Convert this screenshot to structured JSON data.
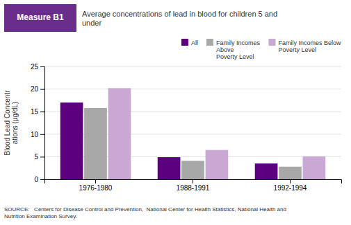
{
  "chart_data": {
    "type": "bar",
    "title": "Average concentrations of lead in blood for children 5 and\nunder",
    "annotations": [
      "Measure B1",
      "SOURCE:   Centers for Disease Control and Prevention,  National Center for Health Statistics, National Health and\nNutrition Examination Survey."
    ],
    "y_label": "Blood Lead Concentr\nations (µg/dL)",
    "categories": [
      "1976-1980",
      "1988-1991",
      "1992-1994"
    ],
    "series": [
      {
        "name": "All",
        "color": "#5c0080",
        "values": [
          17.0,
          4.9,
          3.5
        ]
      },
      {
        "name": "Family Incomes\nAbove\nPoverty Level",
        "color": "#a8a8a8",
        "values": [
          15.8,
          4.1,
          2.8
        ]
      },
      {
        "name": "Family Incomes Below\nPoverty Level",
        "color": "#c9a8d4",
        "values": [
          20.2,
          6.5,
          5.1
        ]
      }
    ],
    "ylim": [
      0,
      25
    ],
    "yticks": [
      0,
      5,
      10,
      15,
      20,
      25
    ],
    "grid": true,
    "legend": "upper right"
  }
}
